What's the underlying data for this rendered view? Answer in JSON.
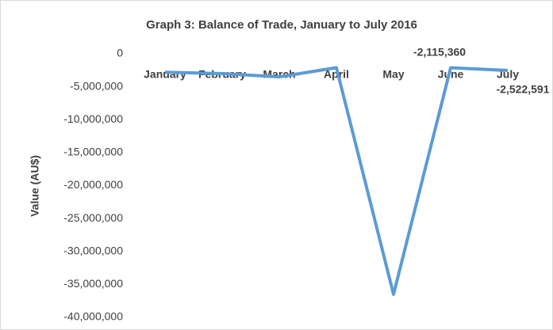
{
  "chart_data": {
    "type": "line",
    "title": "Graph 3: Balance of Trade, January to July 2016",
    "y_label": "Value (AU$)",
    "categories": [
      "January",
      "February",
      "March",
      "April",
      "May",
      "June",
      "July"
    ],
    "series": [
      {
        "name": "Balance of Trade",
        "color": "#5b9bd5",
        "values": [
          -2800000,
          -3000000,
          -3500000,
          -2100000,
          -36500000,
          -2115360,
          -2522591
        ],
        "value_labels": [
          null,
          null,
          null,
          null,
          null,
          "-2,115,360",
          "-2,522,591"
        ]
      }
    ],
    "ylim": [
      -40000000,
      0
    ],
    "yticks": [
      0,
      {
        "value": -5000000,
        "label": "-5,000,000"
      },
      {
        "value": -10000000,
        "label": "-10,000,000"
      },
      {
        "value": -15000000,
        "label": "-15,000,000"
      },
      {
        "value": -20000000,
        "label": "-20,000,000"
      },
      {
        "value": -25000000,
        "label": "-25,000,000"
      },
      {
        "value": -30000000,
        "label": "-30,000,000"
      },
      {
        "value": -35000000,
        "label": "-35,000,000"
      },
      {
        "value": -40000000,
        "label": "-40,000,000"
      }
    ],
    "grid": false
  }
}
